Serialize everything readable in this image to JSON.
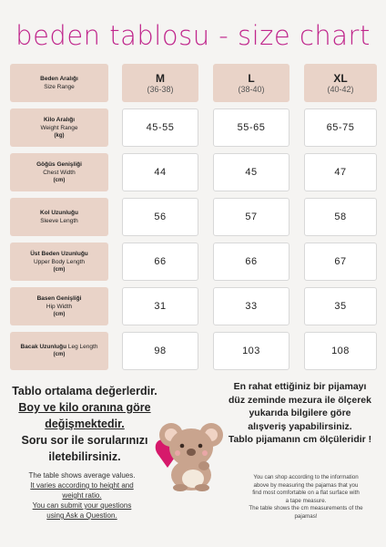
{
  "title": "beden tablosu - size chart",
  "sizes": [
    {
      "name": "M",
      "range": "(36-38)"
    },
    {
      "name": "L",
      "range": "(38-40)"
    },
    {
      "name": "XL",
      "range": "(40-42)"
    }
  ],
  "header_label": {
    "tr": "Beden Aralığı",
    "en": "Size Range"
  },
  "rows": [
    {
      "tr": "Kilo Aralığı",
      "en": "Weight Range",
      "unit": "(kg)",
      "values": [
        "45-55",
        "55-65",
        "65-75"
      ]
    },
    {
      "tr": "Göğüs Genişliği",
      "en": "Chest Width",
      "unit": "(cm)",
      "values": [
        "44",
        "45",
        "47"
      ]
    },
    {
      "tr": "Kol Uzunluğu",
      "en": "Sleeve Length",
      "unit": "(cm)",
      "values": [
        "56",
        "57",
        "58"
      ]
    },
    {
      "tr": "Üst Beden Uzunluğu",
      "en": "Upper Body Length",
      "unit": "(cm)",
      "values": [
        "66",
        "66",
        "67"
      ]
    },
    {
      "tr": "Basen Genişliği",
      "en": "Hip Width",
      "unit": "(cm)",
      "values": [
        "31",
        "33",
        "35"
      ]
    },
    {
      "tr": "Bacak Uzunluğu",
      "en": "Leg Length",
      "unit": "(cm)",
      "values": [
        "98",
        "103",
        "108"
      ]
    }
  ],
  "notes_left": {
    "line1": "Tablo ortalama değerlerdir.",
    "line2": "Boy ve kilo oranına göre",
    "line3": "değişmektedir.",
    "line4": "Soru sor ile sorularınızı",
    "line5": "iletebilirsiniz."
  },
  "notes_left_en": {
    "line1": "The table shows average values.",
    "line2": "It varies according to height and",
    "line3": "weight ratio.",
    "line4": "You can submit your questions",
    "line5": "using Ask a Question."
  },
  "notes_right": {
    "line1": "En rahat ettiğiniz bir pijamayı",
    "line2": "düz zeminde mezura ile ölçerek",
    "line3": "yukarıda bilgilere göre",
    "line4": "alışveriş yapabilirsiniz.",
    "line5": "Tablo pijamanın cm ölçüleridir !"
  },
  "notes_right_en": {
    "line1": "You can shop according to the information",
    "line2": "above by measuring the pajamas that you",
    "line3": "find most comfortable on a flat surface with",
    "line4": "a tape measure.",
    "line5": "The table shows the cm measurements of the",
    "line6": "pajamas!"
  },
  "colors": {
    "title": "#c0268c",
    "label_bg": "#e9d3c8",
    "cell_bg": "#ffffff",
    "page_bg": "#f5f4f2"
  },
  "illustration": "koala-with-heart"
}
